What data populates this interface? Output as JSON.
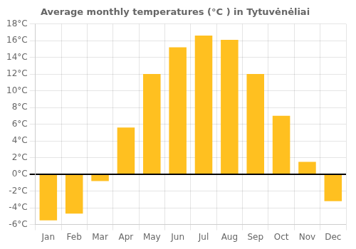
{
  "chart_data": {
    "type": "bar",
    "title": "Average monthly temperatures (°C ) in Tytuvėnėliai",
    "categories": [
      "Jan",
      "Feb",
      "Mar",
      "Apr",
      "May",
      "Jun",
      "Jul",
      "Aug",
      "Sep",
      "Oct",
      "Nov",
      "Dec"
    ],
    "values": [
      -5.5,
      -4.7,
      -0.8,
      5.6,
      12.0,
      15.2,
      16.6,
      16.1,
      12.0,
      7.0,
      1.5,
      -3.2
    ],
    "color": "#FFC020",
    "ylim": [
      -6,
      18
    ],
    "yticks": [
      {
        "value": -6,
        "label": "-6°C"
      },
      {
        "value": -4,
        "label": "-4°C"
      },
      {
        "value": -2,
        "label": "-2°C"
      },
      {
        "value": 0,
        "label": "0°C"
      },
      {
        "value": 2,
        "label": "2°C"
      },
      {
        "value": 4,
        "label": "4°C"
      },
      {
        "value": 6,
        "label": "6°C"
      },
      {
        "value": 8,
        "label": "8°C"
      },
      {
        "value": 10,
        "label": "10°C"
      },
      {
        "value": 12,
        "label": "12°C"
      },
      {
        "value": 14,
        "label": "14°C"
      },
      {
        "value": 16,
        "label": "16°C"
      },
      {
        "value": 18,
        "label": "18°C"
      }
    ],
    "grid": true
  }
}
